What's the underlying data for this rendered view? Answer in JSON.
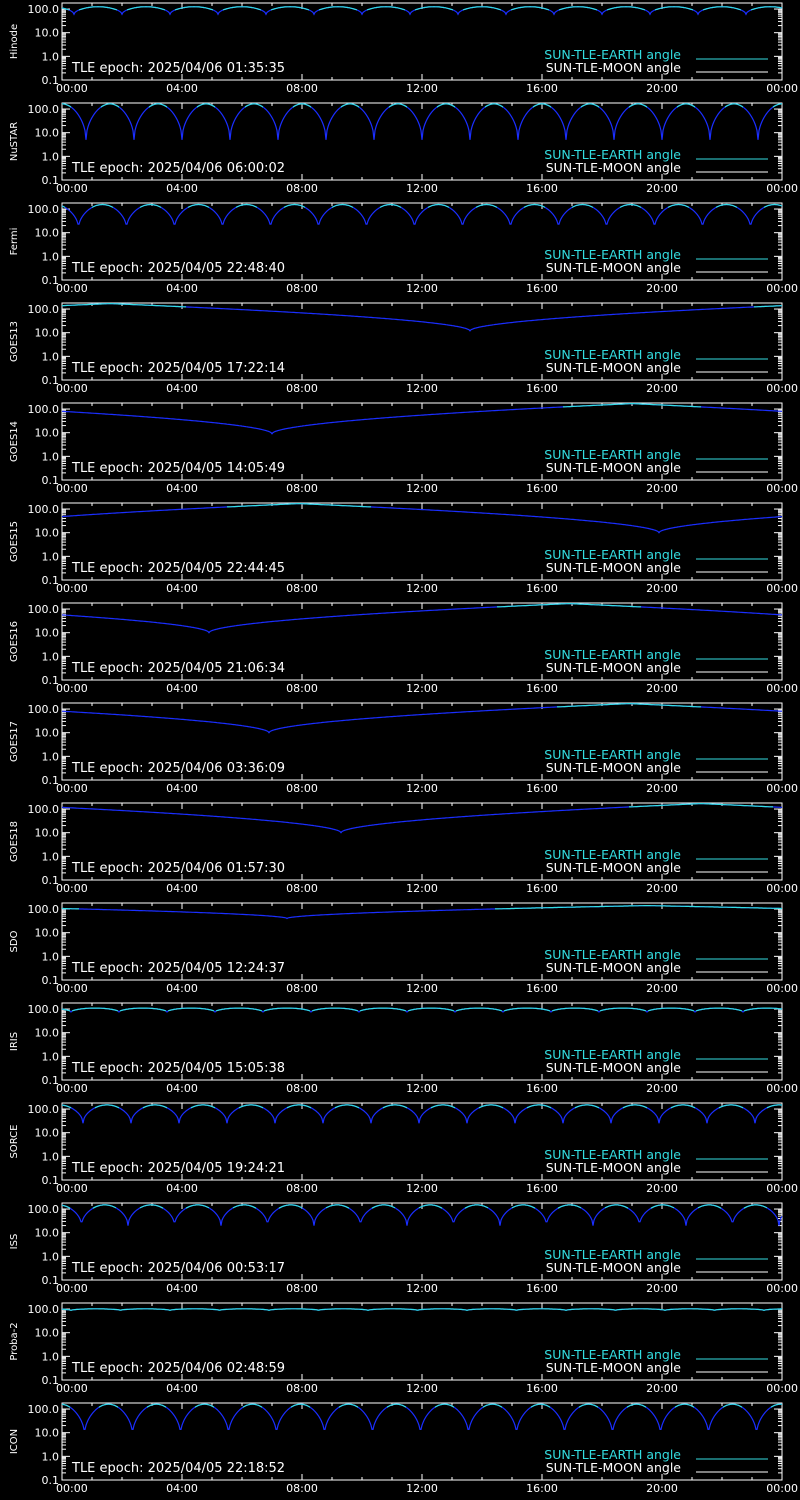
{
  "colors": {
    "background": "#000000",
    "axis": "#ffffff",
    "earth": "#33dde0",
    "moon": "#ffffff",
    "trace": "#1a2eff"
  },
  "legend": {
    "earth": "SUN-TLE-EARTH angle",
    "moon": "SUN-TLE-MOON angle"
  },
  "chart_data": [
    {
      "type": "line",
      "satellite": "Hinode",
      "epoch": "TLE epoch: 2025/04/06 01:35:35",
      "pattern": "orbit",
      "period_h": 1.6,
      "phase_h": 0.4,
      "min": 60,
      "max": 125,
      "xlabel": "",
      "ylabel": "Hinode",
      "yscale": "log",
      "ylim": [
        0.1,
        180
      ],
      "x_tick_labels": [
        "00:00",
        "04:00",
        "08:00",
        "12:00",
        "16:00",
        "20:00",
        "00:00"
      ],
      "y_tick_labels": [
        "100.0",
        "10.0",
        "1.0",
        "0.1"
      ]
    },
    {
      "type": "line",
      "satellite": "NuSTAR",
      "epoch": "TLE epoch: 2025/04/06 06:00:02",
      "pattern": "orbit",
      "period_h": 1.6,
      "phase_h": 0.8,
      "min": 5,
      "max": 165,
      "xlabel": "",
      "ylabel": "NuSTAR",
      "yscale": "log",
      "ylim": [
        0.1,
        180
      ],
      "x_tick_labels": [
        "00:00",
        "04:00",
        "08:00",
        "12:00",
        "16:00",
        "20:00",
        "00:00"
      ],
      "y_tick_labels": [
        "100.0",
        "10.0",
        "1.0",
        "0.1"
      ]
    },
    {
      "type": "line",
      "satellite": "Fermi",
      "epoch": "TLE epoch: 2025/04/05 22:48:40",
      "pattern": "orbit",
      "period_h": 1.6,
      "phase_h": 0.55,
      "min": 15,
      "max": 155,
      "xlabel": "",
      "ylabel": "Fermi",
      "yscale": "log",
      "ylim": [
        0.1,
        180
      ],
      "x_tick_labels": [
        "00:00",
        "04:00",
        "08:00",
        "12:00",
        "16:00",
        "20:00",
        "00:00"
      ],
      "y_tick_labels": [
        "100.0",
        "10.0",
        "1.0",
        "0.1"
      ]
    },
    {
      "type": "line",
      "satellite": "GOES13",
      "epoch": "TLE epoch: 2025/04/05 17:22:14",
      "pattern": "geo",
      "min_time_h": 13.6,
      "min": 12,
      "max": 170,
      "xlabel": "",
      "ylabel": "GOES13",
      "yscale": "log",
      "ylim": [
        0.1,
        180
      ],
      "x_tick_labels": [
        "00:00",
        "04:00",
        "08:00",
        "12:00",
        "16:00",
        "20:00",
        "00:00"
      ],
      "y_tick_labels": [
        "100.0",
        "10.0",
        "1.0",
        "0.1"
      ]
    },
    {
      "type": "line",
      "satellite": "GOES14",
      "epoch": "TLE epoch: 2025/04/05 14:05:49",
      "pattern": "geo",
      "min_time_h": 7.0,
      "min": 9,
      "max": 170,
      "xlabel": "",
      "ylabel": "GOES14",
      "yscale": "log",
      "ylim": [
        0.1,
        180
      ],
      "x_tick_labels": [
        "00:00",
        "04:00",
        "08:00",
        "12:00",
        "16:00",
        "20:00",
        "00:00"
      ],
      "y_tick_labels": [
        "100.0",
        "10.0",
        "1.0",
        "0.1"
      ]
    },
    {
      "type": "line",
      "satellite": "GOES15",
      "epoch": "TLE epoch: 2025/04/05 22:44:45",
      "pattern": "geo",
      "min_time_h": 19.9,
      "min": 10,
      "max": 170,
      "xlabel": "",
      "ylabel": "GOES15",
      "yscale": "log",
      "ylim": [
        0.1,
        180
      ],
      "x_tick_labels": [
        "00:00",
        "04:00",
        "08:00",
        "12:00",
        "16:00",
        "20:00",
        "00:00"
      ],
      "y_tick_labels": [
        "100.0",
        "10.0",
        "1.0",
        "0.1"
      ]
    },
    {
      "type": "line",
      "satellite": "GOES16",
      "epoch": "TLE epoch: 2025/04/05 21:06:34",
      "pattern": "geo",
      "min_time_h": 4.9,
      "min": 10,
      "max": 170,
      "xlabel": "",
      "ylabel": "GOES16",
      "yscale": "log",
      "ylim": [
        0.1,
        180
      ],
      "x_tick_labels": [
        "00:00",
        "04:00",
        "08:00",
        "12:00",
        "16:00",
        "20:00",
        "00:00"
      ],
      "y_tick_labels": [
        "100.0",
        "10.0",
        "1.0",
        "0.1"
      ]
    },
    {
      "type": "line",
      "satellite": "GOES17",
      "epoch": "TLE epoch: 2025/04/06 03:36:09",
      "pattern": "geo",
      "min_time_h": 6.9,
      "min": 10,
      "max": 170,
      "xlabel": "",
      "ylabel": "GOES17",
      "yscale": "log",
      "ylim": [
        0.1,
        180
      ],
      "x_tick_labels": [
        "00:00",
        "04:00",
        "08:00",
        "12:00",
        "16:00",
        "20:00",
        "00:00"
      ],
      "y_tick_labels": [
        "100.0",
        "10.0",
        "1.0",
        "0.1"
      ]
    },
    {
      "type": "line",
      "satellite": "GOES18",
      "epoch": "TLE epoch: 2025/04/06 01:57:30",
      "pattern": "geo",
      "min_time_h": 9.3,
      "min": 10,
      "max": 170,
      "xlabel": "",
      "ylabel": "GOES18",
      "yscale": "log",
      "ylim": [
        0.1,
        180
      ],
      "x_tick_labels": [
        "00:00",
        "04:00",
        "08:00",
        "12:00",
        "16:00",
        "20:00",
        "00:00"
      ],
      "y_tick_labels": [
        "100.0",
        "10.0",
        "1.0",
        "0.1"
      ]
    },
    {
      "type": "line",
      "satellite": "SDO",
      "epoch": "TLE epoch: 2025/04/05 12:24:37",
      "pattern": "geo",
      "min_time_h": 7.5,
      "min": 40,
      "max": 140,
      "xlabel": "",
      "ylabel": "SDO",
      "yscale": "log",
      "ylim": [
        0.1,
        180
      ],
      "x_tick_labels": [
        "00:00",
        "04:00",
        "08:00",
        "12:00",
        "16:00",
        "20:00",
        "00:00"
      ],
      "y_tick_labels": [
        "100.0",
        "10.0",
        "1.0",
        "0.1"
      ]
    },
    {
      "type": "line",
      "satellite": "IRIS",
      "epoch": "TLE epoch: 2025/04/05 15:05:38",
      "pattern": "orbit",
      "period_h": 1.6,
      "phase_h": 0.3,
      "min": 75,
      "max": 110,
      "xlabel": "",
      "ylabel": "IRIS",
      "yscale": "log",
      "ylim": [
        0.1,
        180
      ],
      "x_tick_labels": [
        "00:00",
        "04:00",
        "08:00",
        "12:00",
        "16:00",
        "20:00",
        "00:00"
      ],
      "y_tick_labels": [
        "100.0",
        "10.0",
        "1.0",
        "0.1"
      ]
    },
    {
      "type": "line",
      "satellite": "SORCE",
      "epoch": "TLE epoch: 2025/04/05 19:24:21",
      "pattern": "orbit",
      "period_h": 1.6,
      "phase_h": 0.7,
      "min": 25,
      "max": 150,
      "xlabel": "",
      "ylabel": "SORCE",
      "yscale": "log",
      "ylim": [
        0.1,
        180
      ],
      "x_tick_labels": [
        "00:00",
        "04:00",
        "08:00",
        "12:00",
        "16:00",
        "20:00",
        "00:00"
      ],
      "y_tick_labels": [
        "100.0",
        "10.0",
        "1.0",
        "0.1"
      ]
    },
    {
      "type": "line",
      "satellite": "ISS",
      "epoch": "TLE epoch: 2025/04/06 00:53:17",
      "pattern": "orbit",
      "period_h": 1.55,
      "phase_h": 0.65,
      "min": 20,
      "max": 150,
      "xlabel": "",
      "ylabel": "ISS",
      "yscale": "log",
      "ylim": [
        0.1,
        180
      ],
      "x_tick_labels": [
        "00:00",
        "04:00",
        "08:00",
        "12:00",
        "16:00",
        "20:00",
        "00:00"
      ],
      "y_tick_labels": [
        "100.0",
        "10.0",
        "1.0",
        "0.1"
      ]
    },
    {
      "type": "line",
      "satellite": "Proba-2",
      "epoch": "TLE epoch: 2025/04/06 02:48:59",
      "pattern": "orbit",
      "period_h": 1.65,
      "phase_h": 0.3,
      "min": 88,
      "max": 102,
      "xlabel": "",
      "ylabel": "Proba-2",
      "yscale": "log",
      "ylim": [
        0.1,
        180
      ],
      "x_tick_labels": [
        "00:00",
        "04:00",
        "08:00",
        "12:00",
        "16:00",
        "20:00",
        "00:00"
      ],
      "y_tick_labels": [
        "100.0",
        "10.0",
        "1.0",
        "0.1"
      ]
    },
    {
      "type": "line",
      "satellite": "ICON",
      "epoch": "TLE epoch: 2025/04/05 22:18:52",
      "pattern": "orbit",
      "period_h": 1.6,
      "phase_h": 0.75,
      "min": 8,
      "max": 160,
      "xlabel": "",
      "ylabel": "ICON",
      "yscale": "log",
      "ylim": [
        0.1,
        180
      ],
      "x_tick_labels": [
        "00:00",
        "04:00",
        "08:00",
        "12:00",
        "16:00",
        "20:00",
        "00:00"
      ],
      "y_tick_labels": [
        "100.0",
        "10.0",
        "1.0",
        "0.1"
      ]
    }
  ]
}
